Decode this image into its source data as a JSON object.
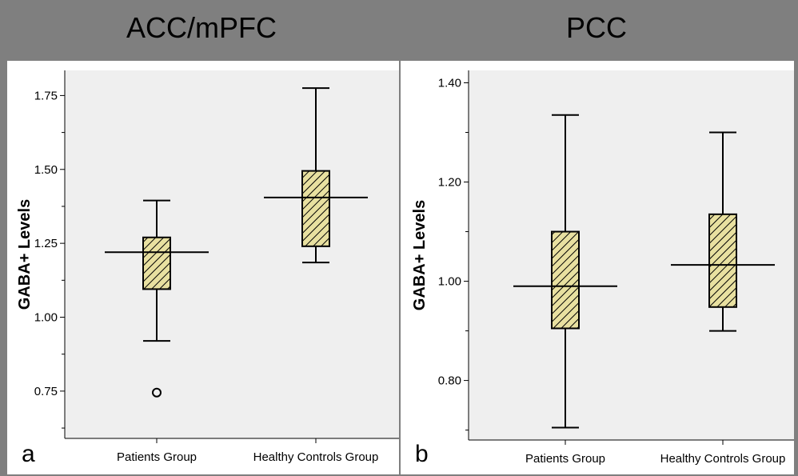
{
  "chart_data": [
    {
      "type": "boxplot",
      "panel_letter": "a",
      "title": "ACC/mPFC",
      "ylabel": "GABA+ Levels",
      "categories": [
        "Patients Group",
        "Healthy Controls Group"
      ],
      "ylim": [
        0.59,
        1.835
      ],
      "yticks": [
        0.75,
        1.0,
        1.25,
        1.5,
        1.75
      ],
      "ytick_labels": [
        "0.75",
        "1.00",
        "1.25",
        "1.50",
        "1.75"
      ],
      "boxes": [
        {
          "name": "Patients Group",
          "whisker_low": 0.92,
          "q1": 1.095,
          "median": 1.22,
          "q3": 1.27,
          "whisker_high": 1.395,
          "outliers": [
            0.745
          ]
        },
        {
          "name": "Healthy Controls Group",
          "whisker_low": 1.185,
          "q1": 1.24,
          "median": 1.405,
          "q3": 1.495,
          "whisker_high": 1.775,
          "outliers": []
        }
      ],
      "fill_color": "#e8e0a0",
      "plot_bg": "#efefef"
    },
    {
      "type": "boxplot",
      "panel_letter": "b",
      "title": "PCC",
      "ylabel": "GABA+ Levels",
      "categories": [
        "Patients Group",
        "Healthy Controls Group"
      ],
      "ylim": [
        0.68,
        1.425
      ],
      "yticks": [
        0.8,
        1.0,
        1.2,
        1.4
      ],
      "ytick_labels": [
        "0.80",
        "1.00",
        "1.20",
        "1.40"
      ],
      "boxes": [
        {
          "name": "Patients Group",
          "whisker_low": 0.705,
          "q1": 0.905,
          "median": 0.99,
          "q3": 1.1,
          "whisker_high": 1.335,
          "outliers": []
        },
        {
          "name": "Healthy Controls Group",
          "whisker_low": 0.9,
          "q1": 0.948,
          "median": 1.033,
          "q3": 1.135,
          "whisker_high": 1.3,
          "outliers": []
        }
      ],
      "fill_color": "#e8e0a0",
      "plot_bg": "#efefef"
    }
  ]
}
